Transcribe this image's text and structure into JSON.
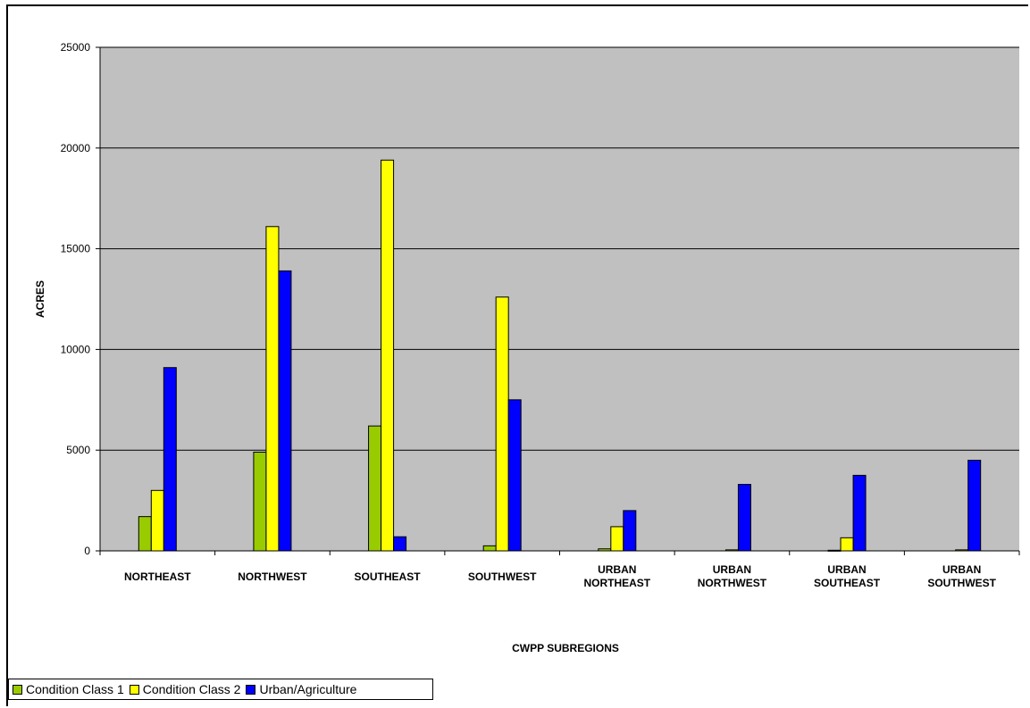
{
  "chart_data": {
    "type": "bar",
    "title": "",
    "xlabel": "CWPP SUBREGIONS",
    "ylabel": "ACRES",
    "ylim": [
      0,
      25000
    ],
    "yticks": [
      "0",
      "5000",
      "10000",
      "15000",
      "20000",
      "25000"
    ],
    "grid": true,
    "legend_position": "bottom-left",
    "plot_background": "#c0c0c0",
    "categories": [
      [
        "NORTHEAST"
      ],
      [
        "NORTHWEST"
      ],
      [
        "SOUTHEAST"
      ],
      [
        "SOUTHWEST"
      ],
      [
        "URBAN",
        "NORTHEAST"
      ],
      [
        "URBAN",
        "NORTHWEST"
      ],
      [
        "URBAN",
        "SOUTHEAST"
      ],
      [
        "URBAN",
        "SOUTHWEST"
      ]
    ],
    "series": [
      {
        "name": "Condition Class 1",
        "color": "#99cc00",
        "values": [
          1700,
          4900,
          6200,
          250,
          100,
          0,
          30,
          0
        ]
      },
      {
        "name": "Condition Class 2",
        "color": "#ffff00",
        "values": [
          3000,
          16100,
          19400,
          12600,
          1200,
          50,
          650,
          50
        ]
      },
      {
        "name": "Urban/Agriculture",
        "color": "#0000ff",
        "values": [
          9100,
          13900,
          700,
          7500,
          2000,
          3300,
          3750,
          4500
        ]
      }
    ]
  }
}
